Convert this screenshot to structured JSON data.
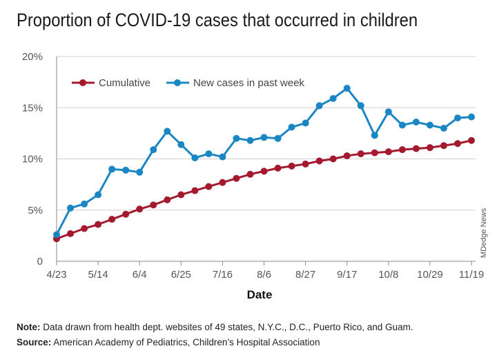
{
  "title": "Proportion of COVID-19 cases that occurred in children",
  "credit": "MDedge News",
  "note": {
    "label": "Note:",
    "text": " Data drawn from health dept. websites of 49 states, N.Y.C., D.C., Puerto Rico, and Guam."
  },
  "source": {
    "label": "Source:",
    "text": " American Academy of Pediatrics, Children’s Hospital Association"
  },
  "colors": {
    "cumulative": "#a31a2e",
    "new_cases": "#1b86c4",
    "grid": "#d0d0d0",
    "axis": "#888888"
  },
  "chart_data": {
    "type": "line",
    "xlabel": "Date",
    "ylabel": "",
    "ylim": [
      0,
      20
    ],
    "y_ticks": [
      {
        "value": 0,
        "label": "0"
      },
      {
        "value": 5,
        "label": "5%"
      },
      {
        "value": 10,
        "label": "10%"
      },
      {
        "value": 15,
        "label": "15%"
      },
      {
        "value": 20,
        "label": "20%"
      }
    ],
    "x": [
      "4/23",
      "4/30",
      "5/7",
      "5/14",
      "5/21",
      "5/28",
      "6/4",
      "6/11",
      "6/18",
      "6/25",
      "7/2",
      "7/9",
      "7/16",
      "7/23",
      "7/30",
      "8/6",
      "8/13",
      "8/20",
      "8/27",
      "9/3",
      "9/10",
      "9/17",
      "9/24",
      "10/1",
      "10/8",
      "10/15",
      "10/22",
      "10/29",
      "11/5",
      "11/12",
      "11/19"
    ],
    "x_tick_labels": [
      "4/23",
      "5/14",
      "6/4",
      "6/25",
      "7/16",
      "8/6",
      "8/27",
      "9/17",
      "10/8",
      "10/29",
      "11/19"
    ],
    "grid": true,
    "legend_position": "top-left",
    "series": [
      {
        "name": "Cumulative",
        "color_key": "cumulative",
        "values": [
          2.2,
          2.7,
          3.2,
          3.6,
          4.1,
          4.6,
          5.1,
          5.5,
          6.0,
          6.5,
          6.9,
          7.3,
          7.7,
          8.1,
          8.5,
          8.8,
          9.1,
          9.3,
          9.5,
          9.8,
          10.0,
          10.3,
          10.5,
          10.6,
          10.7,
          10.9,
          11.0,
          11.1,
          11.3,
          11.5,
          11.8
        ]
      },
      {
        "name": "New cases in past week",
        "color_key": "new_cases",
        "values": [
          2.6,
          5.2,
          5.6,
          6.5,
          9.0,
          8.9,
          8.7,
          10.9,
          12.7,
          11.4,
          10.1,
          10.5,
          10.2,
          12.0,
          11.8,
          12.1,
          12.0,
          13.1,
          13.5,
          15.2,
          15.9,
          16.9,
          15.2,
          12.3,
          14.6,
          13.3,
          13.6,
          13.3,
          13.0,
          14.0,
          14.1
        ]
      }
    ]
  }
}
